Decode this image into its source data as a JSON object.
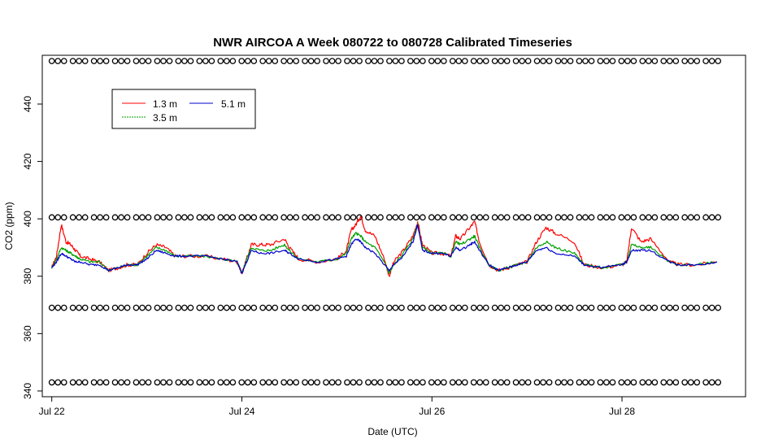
{
  "chart_data": {
    "type": "line",
    "title": "NWR AIRCOA A  Week 080722 to 080728  Calibrated Timeseries",
    "xlabel": "Date (UTC)",
    "ylabel": "CO2 (ppm)",
    "xlim": [
      21.9,
      29.3
    ],
    "ylim": [
      338,
      457
    ],
    "x_ticks": [
      {
        "value": 22,
        "label": "Jul 22"
      },
      {
        "value": 24,
        "label": "Jul 24"
      },
      {
        "value": 26,
        "label": "Jul 26"
      },
      {
        "value": 28,
        "label": "Jul 28"
      }
    ],
    "y_ticks": [
      340,
      360,
      380,
      400,
      420,
      440
    ],
    "grid": false,
    "legend": {
      "position": "top-left",
      "entries": [
        {
          "label": "1.3 m",
          "color": "#ff0000"
        },
        {
          "label": "5.1 m",
          "color": "#0000cc"
        },
        {
          "label": "3.5 m",
          "color": "#00a000"
        }
      ]
    },
    "series": [
      {
        "name": "1.3 m",
        "color": "#ff0000",
        "x": [
          22.0,
          22.05,
          22.1,
          22.15,
          22.2,
          22.25,
          22.3,
          22.4,
          22.5,
          22.6,
          22.7,
          22.8,
          22.9,
          23.0,
          23.1,
          23.2,
          23.3,
          23.4,
          23.6,
          23.8,
          23.95,
          24.0,
          24.05,
          24.1,
          24.2,
          24.3,
          24.45,
          24.5,
          24.6,
          24.8,
          25.0,
          25.1,
          25.15,
          25.2,
          25.25,
          25.3,
          25.4,
          25.5,
          25.55,
          25.6,
          25.7,
          25.8,
          25.85,
          25.9,
          26.0,
          26.1,
          26.2,
          26.25,
          26.3,
          26.4,
          26.45,
          26.5,
          26.6,
          26.7,
          26.8,
          26.9,
          27.0,
          27.1,
          27.2,
          27.3,
          27.5,
          27.6,
          27.8,
          28.0,
          28.05,
          28.1,
          28.2,
          28.3,
          28.5,
          28.6,
          28.8,
          29.0
        ],
        "values": [
          383,
          387,
          398,
          392,
          391,
          389,
          387,
          386,
          385,
          382,
          383,
          384,
          384,
          388,
          391,
          390,
          387,
          387,
          387,
          386,
          385,
          381,
          386,
          391,
          391,
          391,
          393,
          390,
          386,
          385,
          386,
          389,
          396,
          398,
          401,
          396,
          394,
          386,
          380,
          385,
          389,
          394,
          399,
          391,
          388,
          388,
          387,
          394,
          393,
          397,
          399,
          392,
          384,
          382,
          383,
          384,
          385,
          392,
          397,
          395,
          392,
          384,
          383,
          384,
          385,
          397,
          392,
          393,
          385,
          384,
          384,
          385
        ]
      },
      {
        "name": "3.5 m",
        "color": "#00a000",
        "x": [
          22.0,
          22.05,
          22.1,
          22.15,
          22.2,
          22.25,
          22.3,
          22.4,
          22.5,
          22.6,
          22.7,
          22.8,
          22.9,
          23.0,
          23.1,
          23.2,
          23.3,
          23.4,
          23.6,
          23.8,
          23.95,
          24.0,
          24.05,
          24.1,
          24.2,
          24.3,
          24.45,
          24.5,
          24.6,
          24.8,
          25.0,
          25.1,
          25.15,
          25.2,
          25.25,
          25.3,
          25.4,
          25.5,
          25.55,
          25.6,
          25.7,
          25.8,
          25.85,
          25.9,
          26.0,
          26.1,
          26.2,
          26.25,
          26.3,
          26.4,
          26.45,
          26.5,
          26.6,
          26.7,
          26.8,
          26.9,
          27.0,
          27.1,
          27.2,
          27.3,
          27.5,
          27.6,
          27.8,
          28.0,
          28.05,
          28.1,
          28.2,
          28.3,
          28.5,
          28.6,
          28.8,
          29.0
        ],
        "values": [
          383,
          386,
          390,
          389,
          388,
          387,
          386,
          385,
          385,
          382,
          383,
          384,
          384,
          387,
          390,
          389,
          387,
          387,
          387,
          386,
          385,
          381,
          386,
          390,
          389,
          389,
          391,
          389,
          386,
          385,
          386,
          388,
          393,
          395,
          394,
          392,
          390,
          385,
          381,
          384,
          388,
          393,
          398,
          390,
          388,
          388,
          387,
          392,
          391,
          393,
          394,
          390,
          384,
          382,
          383,
          384,
          385,
          390,
          392,
          390,
          388,
          384,
          383,
          384,
          385,
          391,
          390,
          390,
          385,
          384,
          384,
          385
        ]
      },
      {
        "name": "5.1 m",
        "color": "#0000cc",
        "x": [
          22.0,
          22.05,
          22.1,
          22.15,
          22.2,
          22.25,
          22.3,
          22.4,
          22.5,
          22.6,
          22.7,
          22.8,
          22.9,
          23.0,
          23.1,
          23.2,
          23.3,
          23.4,
          23.6,
          23.8,
          23.95,
          24.0,
          24.05,
          24.1,
          24.2,
          24.3,
          24.45,
          24.5,
          24.6,
          24.8,
          25.0,
          25.1,
          25.15,
          25.2,
          25.25,
          25.3,
          25.4,
          25.5,
          25.55,
          25.6,
          25.7,
          25.8,
          25.85,
          25.9,
          26.0,
          26.1,
          26.2,
          26.25,
          26.3,
          26.4,
          26.45,
          26.5,
          26.6,
          26.7,
          26.8,
          26.9,
          27.0,
          27.1,
          27.2,
          27.3,
          27.5,
          27.6,
          27.8,
          28.0,
          28.05,
          28.1,
          28.2,
          28.3,
          28.5,
          28.6,
          28.8,
          29.0
        ],
        "values": [
          383,
          385,
          388,
          387,
          386,
          385,
          385,
          384,
          384,
          382,
          383,
          384,
          384,
          386,
          389,
          388,
          387,
          387,
          387,
          386,
          385,
          381,
          385,
          389,
          388,
          388,
          389,
          388,
          386,
          385,
          386,
          387,
          391,
          393,
          392,
          390,
          388,
          384,
          382,
          384,
          387,
          392,
          398,
          389,
          388,
          388,
          387,
          390,
          389,
          391,
          392,
          389,
          384,
          382,
          383,
          384,
          385,
          389,
          390,
          388,
          387,
          384,
          383,
          384,
          385,
          389,
          389,
          389,
          385,
          384,
          384,
          385
        ]
      }
    ],
    "reference_markers": {
      "symbol": "circle",
      "color": "#000000",
      "levels": [
        455,
        400.5,
        369,
        343
      ]
    }
  }
}
